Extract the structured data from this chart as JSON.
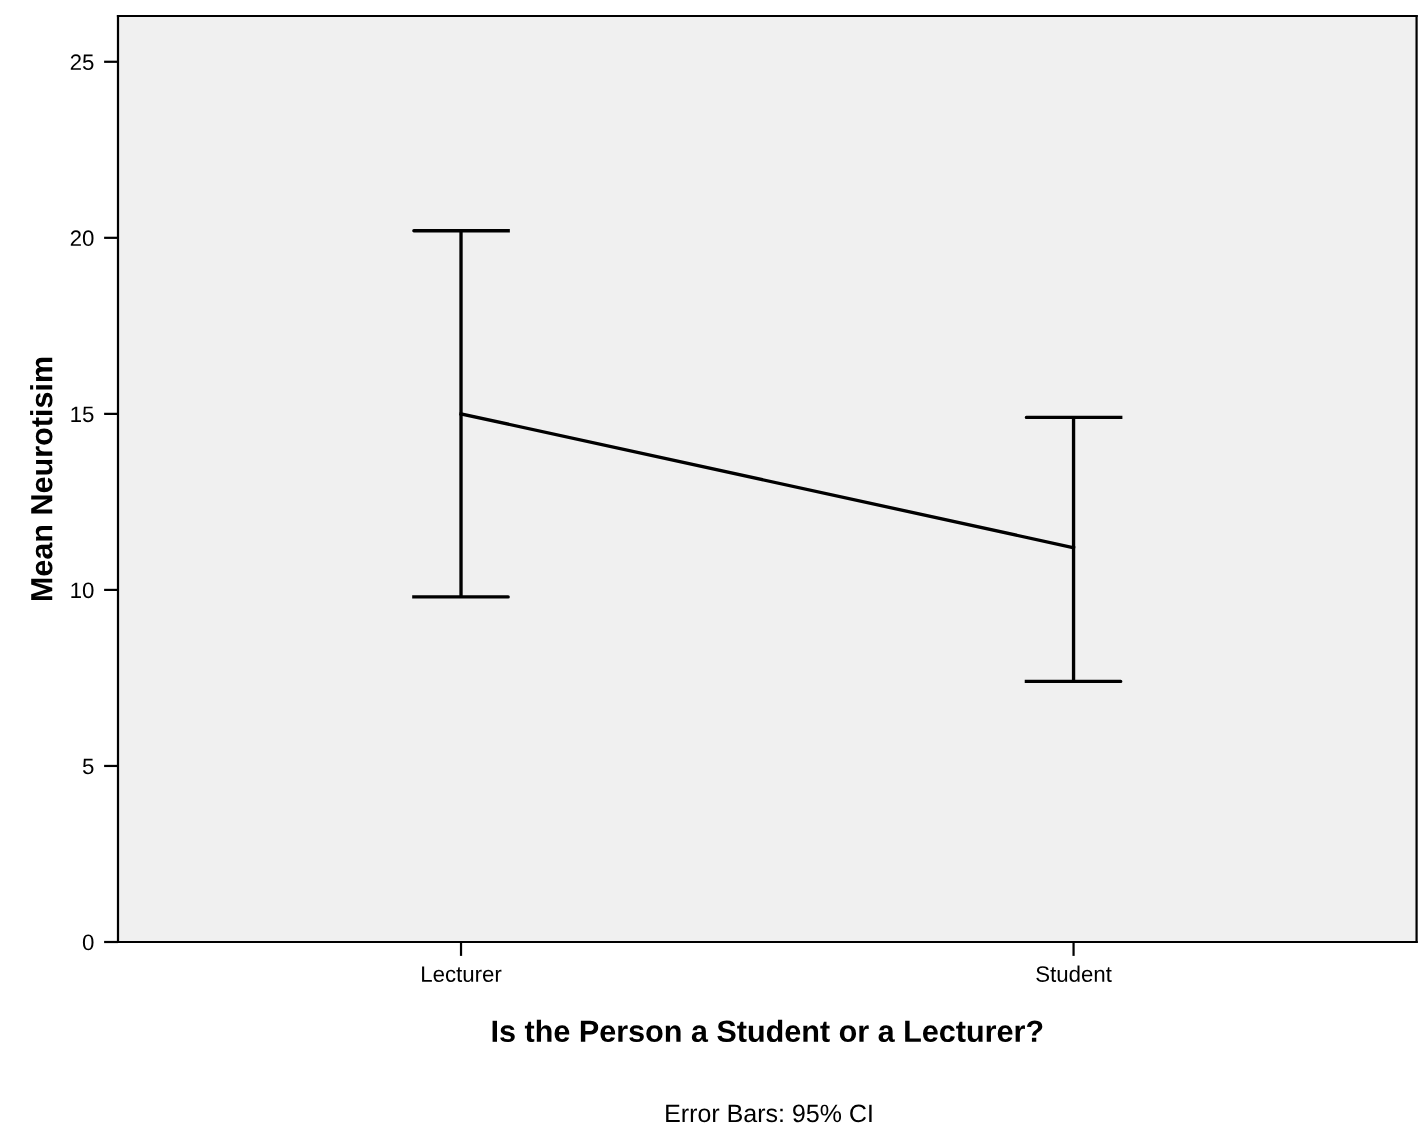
{
  "chart_data": {
    "type": "line",
    "xlabel": "Is the Person a Student or a Lecturer?",
    "ylabel": "Mean Neurotisim",
    "categories": [
      "Lecturer",
      "Student"
    ],
    "series": [
      {
        "color": "#000000",
        "values": [
          15.0,
          11.2
        ],
        "errors": [
          [
            9.8,
            20.2
          ],
          [
            7.4,
            14.9
          ]
        ]
      }
    ],
    "ylim": [
      0,
      26.3
    ],
    "yticks": [
      0,
      5,
      10,
      15,
      20,
      25
    ],
    "grid": false,
    "legend": false,
    "marker": "none",
    "line_style": "solid",
    "annotations": [
      "Error Bars: 95% CI"
    ]
  }
}
